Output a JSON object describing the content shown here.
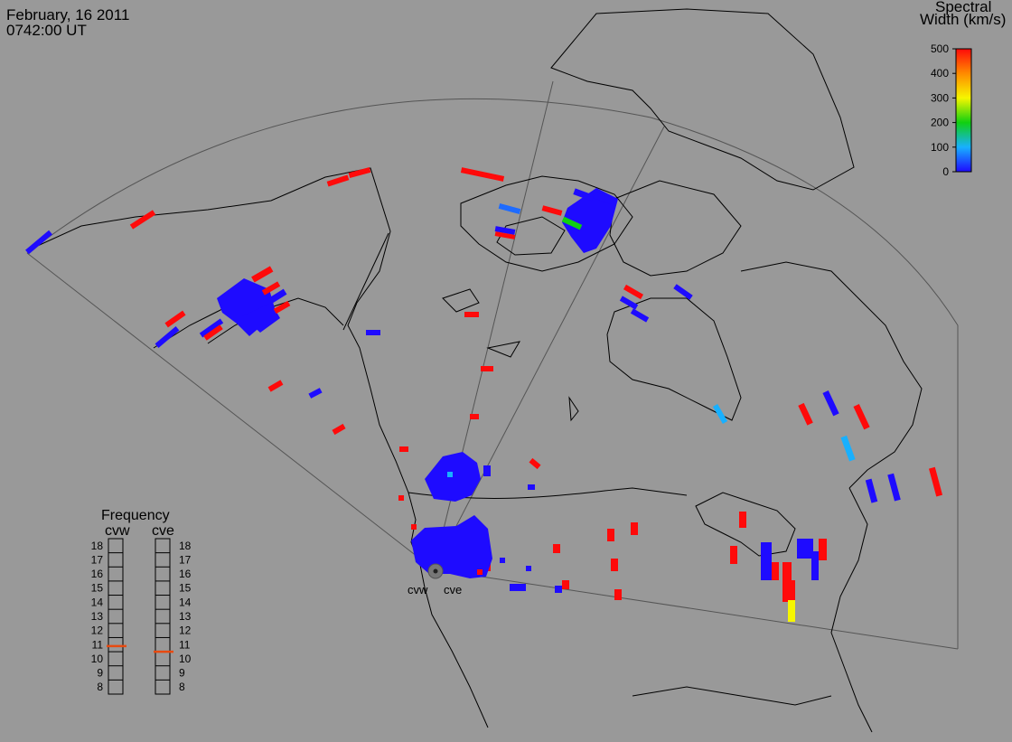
{
  "header": {
    "date": "February, 16 2011",
    "time": "0742:00 UT"
  },
  "colorbar": {
    "title_line1": "Spectral",
    "title_line2": "Width (km/s)",
    "ticks": [
      "0",
      "100",
      "200",
      "300",
      "400",
      "500"
    ],
    "min": 0,
    "max": 500
  },
  "frequency_panel": {
    "title": "Frequency",
    "radars": [
      {
        "name": "cvw",
        "value": 10.9
      },
      {
        "name": "cve",
        "value": 10.5
      }
    ],
    "ticks": [
      "18",
      "17",
      "16",
      "15",
      "14",
      "13",
      "12",
      "11",
      "10",
      "9",
      "8"
    ]
  },
  "radar_sites": [
    {
      "label": "cvw"
    },
    {
      "label": "cve"
    }
  ],
  "colors": {
    "background": "#999999",
    "low": "#1e0bff",
    "high": "#ff0a0a",
    "mid": "#10d010",
    "cyan": "#18b0ff",
    "yellow": "#f6f600",
    "freq_marker": "#e84a10"
  }
}
